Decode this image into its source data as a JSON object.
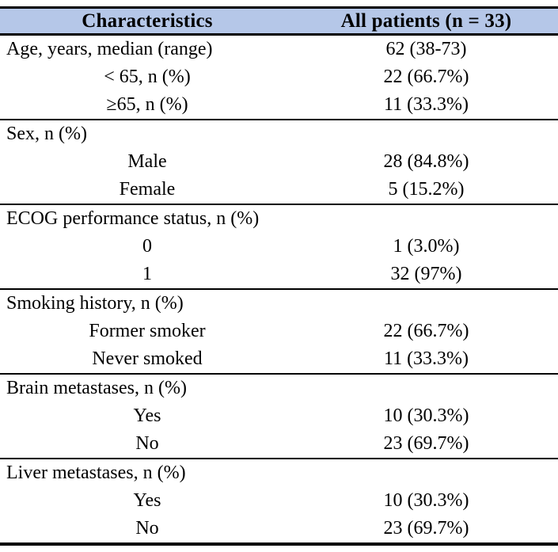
{
  "colors": {
    "header_bg": "#b5c7e8",
    "border": "#000000",
    "text": "#000000"
  },
  "table": {
    "header": {
      "col1": "Characteristics",
      "col2": "All patients (n = 33)"
    },
    "rows": [
      {
        "label": "Age, years, median (range)",
        "value": "62 (38-73)",
        "indent": false
      },
      {
        "label": "< 65, n (%)",
        "value": "22 (66.7%)",
        "indent": true
      },
      {
        "label": "≥65, n (%)",
        "value": "11 (33.3%)",
        "indent": true
      },
      {
        "label": "Sex, n (%)",
        "value": "",
        "indent": false
      },
      {
        "label": "Male",
        "value": "28 (84.8%)",
        "indent": true
      },
      {
        "label": "Female",
        "value": "5 (15.2%)",
        "indent": true
      },
      {
        "label": "ECOG performance status, n (%)",
        "value": "",
        "indent": false
      },
      {
        "label": "0",
        "value": "1 (3.0%)",
        "indent": true
      },
      {
        "label": "1",
        "value": "32 (97%)",
        "indent": true
      },
      {
        "label": "Smoking history, n (%)",
        "value": "",
        "indent": false
      },
      {
        "label": "Former smoker",
        "value": "22 (66.7%)",
        "indent": true
      },
      {
        "label": "Never smoked",
        "value": "11 (33.3%)",
        "indent": true
      },
      {
        "label": "Brain metastases, n (%)",
        "value": "",
        "indent": false
      },
      {
        "label": "Yes",
        "value": "10 (30.3%)",
        "indent": true
      },
      {
        "label": "No",
        "value": "23 (69.7%)",
        "indent": true
      },
      {
        "label": "Liver metastases, n (%)",
        "value": "",
        "indent": false
      },
      {
        "label": "Yes",
        "value": "10 (30.3%)",
        "indent": true
      },
      {
        "label": "No",
        "value": "23 (69.7%)",
        "indent": true
      }
    ]
  }
}
